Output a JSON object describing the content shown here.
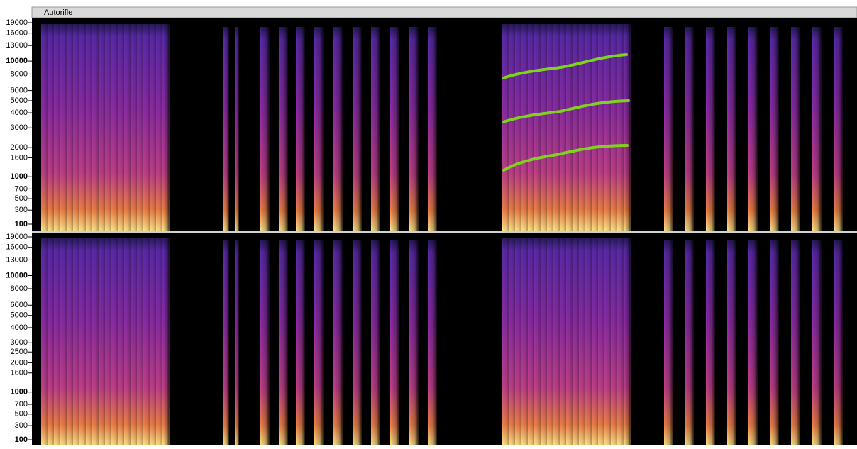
{
  "track_name": "Autorifle",
  "channels": [
    {
      "ticks": [
        19000,
        16000,
        13000,
        10000,
        8000,
        6000,
        5000,
        4000,
        3000,
        2000,
        1600,
        1000,
        700,
        500,
        300,
        100
      ]
    },
    {
      "ticks": [
        19000,
        16000,
        13000,
        10000,
        8000,
        6000,
        5000,
        4000,
        3000,
        2500,
        2000,
        1600,
        1000,
        700,
        500,
        300,
        100
      ]
    }
  ]
}
